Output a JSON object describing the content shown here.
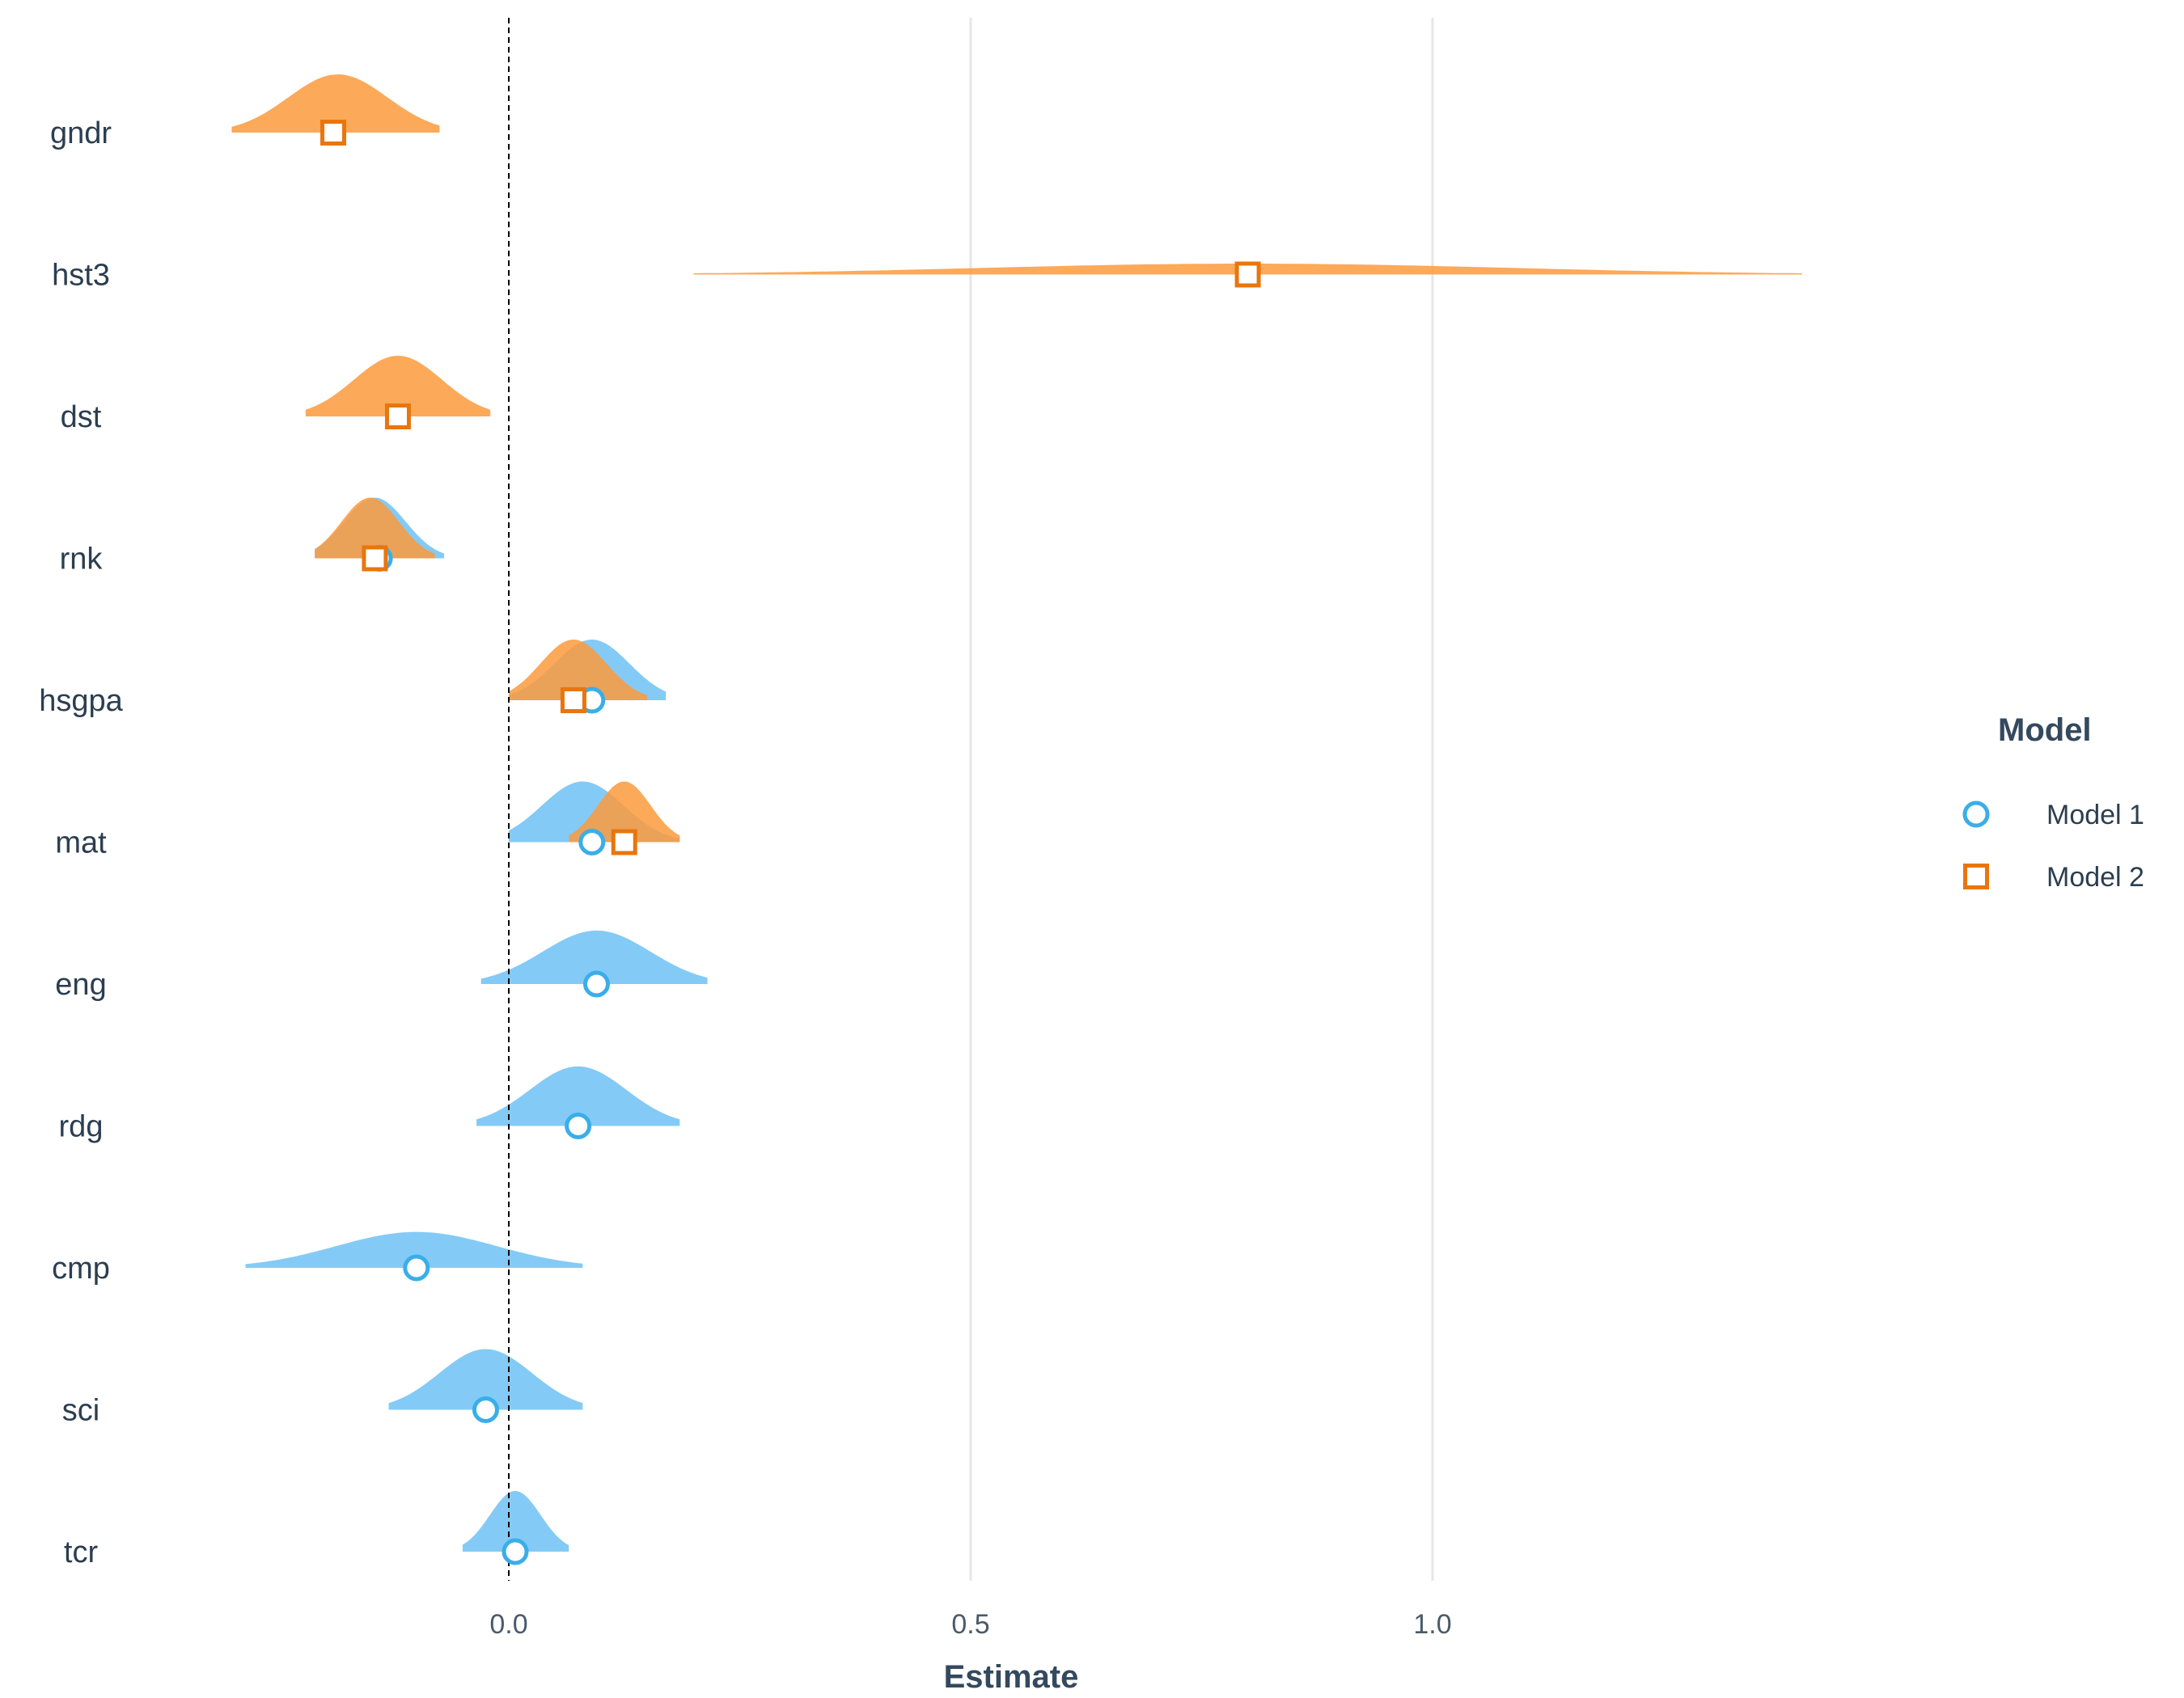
{
  "chart_data": {
    "type": "ridgeline-coefficient",
    "xlabel": "Estimate",
    "xlim": [
      -0.42,
      1.45
    ],
    "x_ticks": [
      {
        "value": 0.0,
        "label": "0.0"
      },
      {
        "value": 0.5,
        "label": "0.5"
      },
      {
        "value": 1.0,
        "label": "1.0"
      }
    ],
    "reference_line": 0.0,
    "categories": [
      "gndr",
      "hst3",
      "dst",
      "rnk",
      "hsgpa",
      "mat",
      "eng",
      "rdg",
      "cmp",
      "sci",
      "tcr"
    ],
    "legend": {
      "title": "Model",
      "placement": "right"
    },
    "series": [
      {
        "name": "Model 1",
        "marker": "circle",
        "fill_color": "#6ec1f5",
        "stroke_color": "#3aaee8",
        "estimates": [
          {
            "category": "rnk",
            "estimate": -0.14,
            "min": -0.21,
            "max": -0.07,
            "mode": -0.145
          },
          {
            "category": "hsgpa",
            "estimate": 0.09,
            "min": 0.0,
            "max": 0.17,
            "mode": 0.09
          },
          {
            "category": "mat",
            "estimate": 0.09,
            "min": 0.0,
            "max": 0.185,
            "mode": 0.08
          },
          {
            "category": "eng",
            "estimate": 0.095,
            "min": -0.03,
            "max": 0.215,
            "mode": 0.095
          },
          {
            "category": "rdg",
            "estimate": 0.075,
            "min": -0.035,
            "max": 0.185,
            "mode": 0.075
          },
          {
            "category": "cmp",
            "estimate": -0.1,
            "min": -0.285,
            "max": 0.08,
            "mode": -0.1
          },
          {
            "category": "sci",
            "estimate": -0.025,
            "min": -0.13,
            "max": 0.08,
            "mode": -0.025
          },
          {
            "category": "tcr",
            "estimate": 0.007,
            "min": -0.05,
            "max": 0.065,
            "mode": 0.007
          }
        ]
      },
      {
        "name": "Model 2",
        "marker": "square",
        "fill_color": "#fb9a3c",
        "stroke_color": "#e8760e",
        "estimates": [
          {
            "category": "gndr",
            "estimate": -0.19,
            "min": -0.3,
            "max": -0.075,
            "mode": -0.185
          },
          {
            "category": "hst3",
            "estimate": 0.8,
            "min": 0.2,
            "max": 1.4,
            "mode": 0.8
          },
          {
            "category": "dst",
            "estimate": -0.12,
            "min": -0.22,
            "max": -0.02,
            "mode": -0.12
          },
          {
            "category": "rnk",
            "estimate": -0.145,
            "min": -0.21,
            "max": -0.08,
            "mode": -0.15
          },
          {
            "category": "hsgpa",
            "estimate": 0.07,
            "min": 0.0,
            "max": 0.15,
            "mode": 0.07
          },
          {
            "category": "mat",
            "estimate": 0.125,
            "min": 0.065,
            "max": 0.185,
            "mode": 0.125
          }
        ]
      }
    ]
  }
}
